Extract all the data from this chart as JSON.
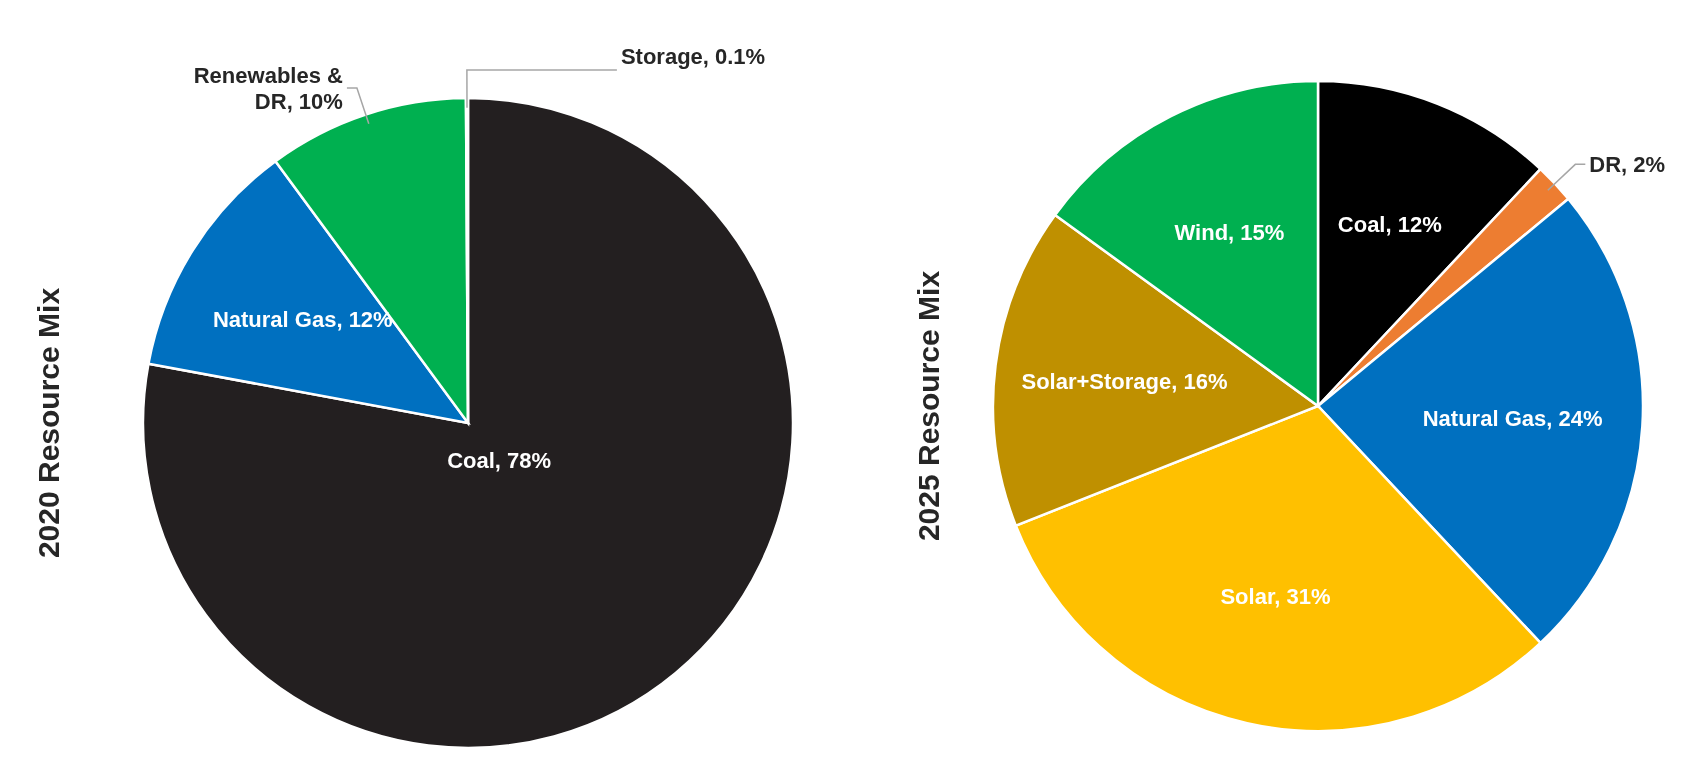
{
  "chart_data": [
    {
      "type": "pie",
      "ylabel": "2020 Resource Mix",
      "categories": [
        "Coal",
        "Natural Gas",
        "Renewables & DR",
        "Storage"
      ],
      "values": [
        78,
        12,
        10,
        0.1
      ],
      "colors": [
        "#231f20",
        "#0070c0",
        "#00b050",
        "#a6a6a6"
      ],
      "value_labels": [
        "78%",
        "12%",
        "10%",
        "0.1%"
      ]
    },
    {
      "type": "pie",
      "ylabel": "2025 Resource Mix",
      "categories": [
        "Coal",
        "DR",
        "Natural Gas",
        "Solar",
        "Solar+Storage",
        "Wind"
      ],
      "values": [
        12,
        2,
        24,
        31,
        16,
        15
      ],
      "colors": [
        "#000000",
        "#ed7d31",
        "#0070c0",
        "#ffc000",
        "#bf9000",
        "#00b050"
      ],
      "value_labels": [
        "12%",
        "2%",
        "24%",
        "31%",
        "16%",
        "15%"
      ]
    }
  ]
}
